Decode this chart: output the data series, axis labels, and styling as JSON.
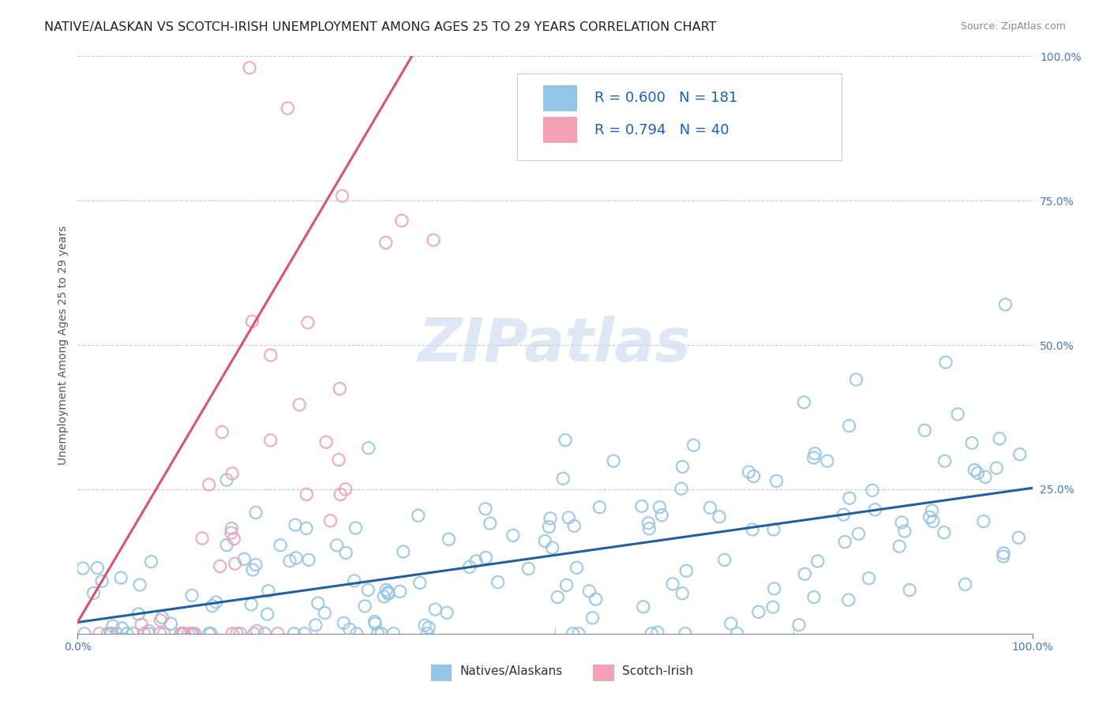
{
  "title": "NATIVE/ALASKAN VS SCOTCH-IRISH UNEMPLOYMENT AMONG AGES 25 TO 29 YEARS CORRELATION CHART",
  "source": "Source: ZipAtlas.com",
  "ylabel": "Unemployment Among Ages 25 to 29 years",
  "xlim": [
    0,
    1
  ],
  "ylim": [
    0,
    1
  ],
  "xtick_positions": [
    0.0,
    1.0
  ],
  "xtick_labels": [
    "0.0%",
    "100.0%"
  ],
  "ytick_positions": [
    0.25,
    0.5,
    0.75,
    1.0
  ],
  "ytick_labels": [
    "25.0%",
    "50.0%",
    "75.0%",
    "100.0%"
  ],
  "blue_R": 0.6,
  "blue_N": 181,
  "pink_R": 0.794,
  "pink_N": 40,
  "blue_marker_color": "#92C5E8",
  "blue_edge_color": "#92C5E8",
  "pink_marker_color": "#F4A0B5",
  "pink_edge_color": "#F4A0B5",
  "blue_line_color": "#2060A0",
  "pink_line_color": "#E05070",
  "tick_color": "#4477CC",
  "watermark": "ZIPatlas",
  "background_color": "#FFFFFF",
  "title_fontsize": 11.5,
  "axis_label_fontsize": 10,
  "source_fontsize": 9,
  "legend_fontsize": 13,
  "legend_R_color": "#1a5fbf",
  "seed_blue": 42,
  "seed_pink": 123
}
